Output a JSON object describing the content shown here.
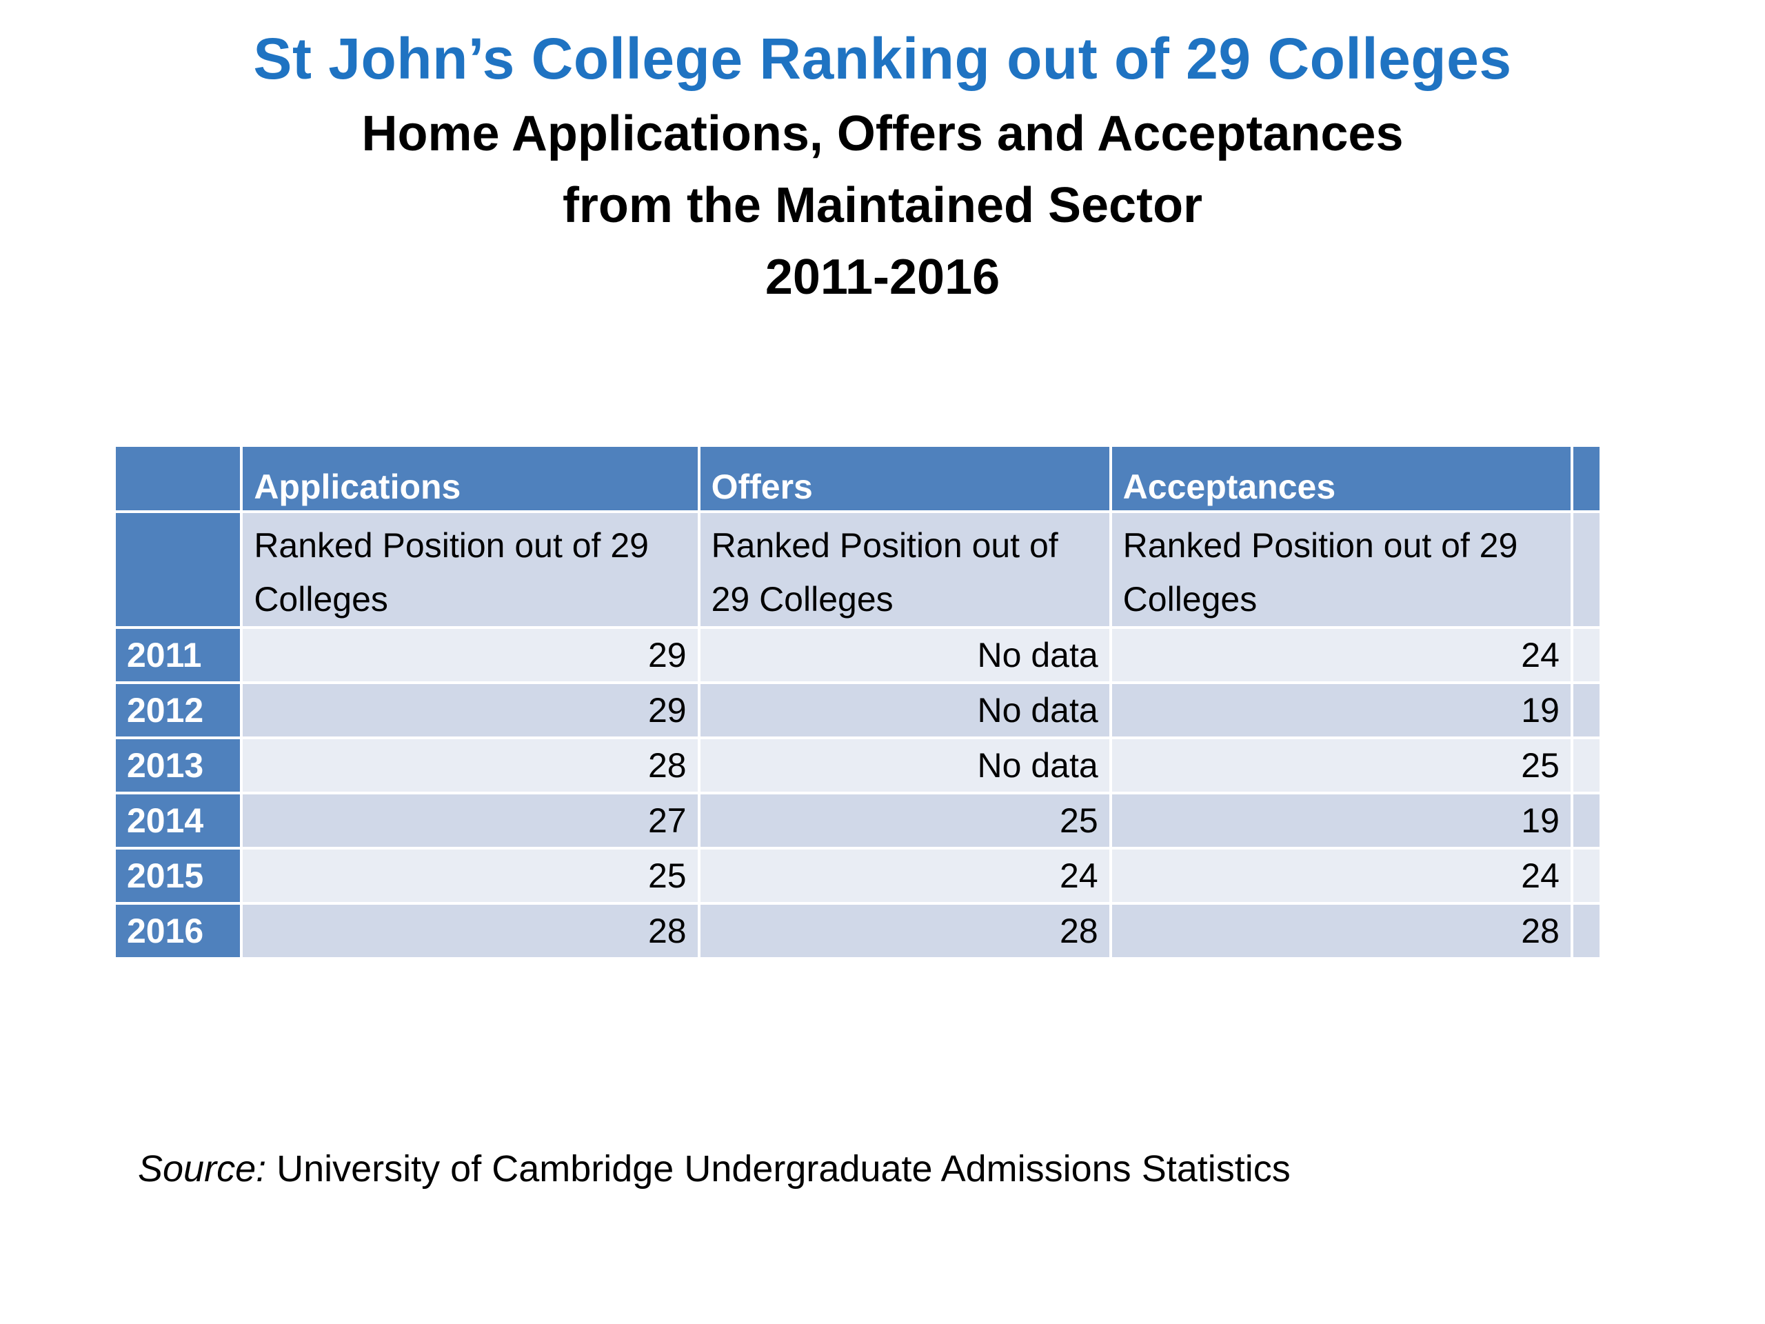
{
  "title": "St John’s College Ranking out of 29 Colleges",
  "subtitle_lines": [
    "Home Applications, Offers and Acceptances",
    "from the Maintained Sector",
    "2011-2016"
  ],
  "table": {
    "headers": [
      "Applications",
      "Offers",
      "Acceptances"
    ],
    "subheaders": [
      "Ranked Position out of 29 Colleges",
      "Ranked Position out of 29 Colleges",
      "Ranked Position out of 29 Colleges"
    ],
    "rows": [
      {
        "year": "2011",
        "applications": "29",
        "offers": "No data",
        "acceptances": "24"
      },
      {
        "year": "2012",
        "applications": "29",
        "offers": "No data",
        "acceptances": "19"
      },
      {
        "year": "2013",
        "applications": "28",
        "offers": "No data",
        "acceptances": "25"
      },
      {
        "year": "2014",
        "applications": "27",
        "offers": "25",
        "acceptances": "19"
      },
      {
        "year": "2015",
        "applications": "25",
        "offers": "24",
        "acceptances": "24"
      },
      {
        "year": "2016",
        "applications": "28",
        "offers": "28",
        "acceptances": "28"
      }
    ]
  },
  "source": {
    "label": "Source:",
    "text": " University of Cambridge Undergraduate Admissions Statistics"
  },
  "colors": {
    "title": "#1f73c2",
    "header_fill": "#4f81bd",
    "row_light": "#e9edf4",
    "row_dark": "#d0d8e8"
  }
}
